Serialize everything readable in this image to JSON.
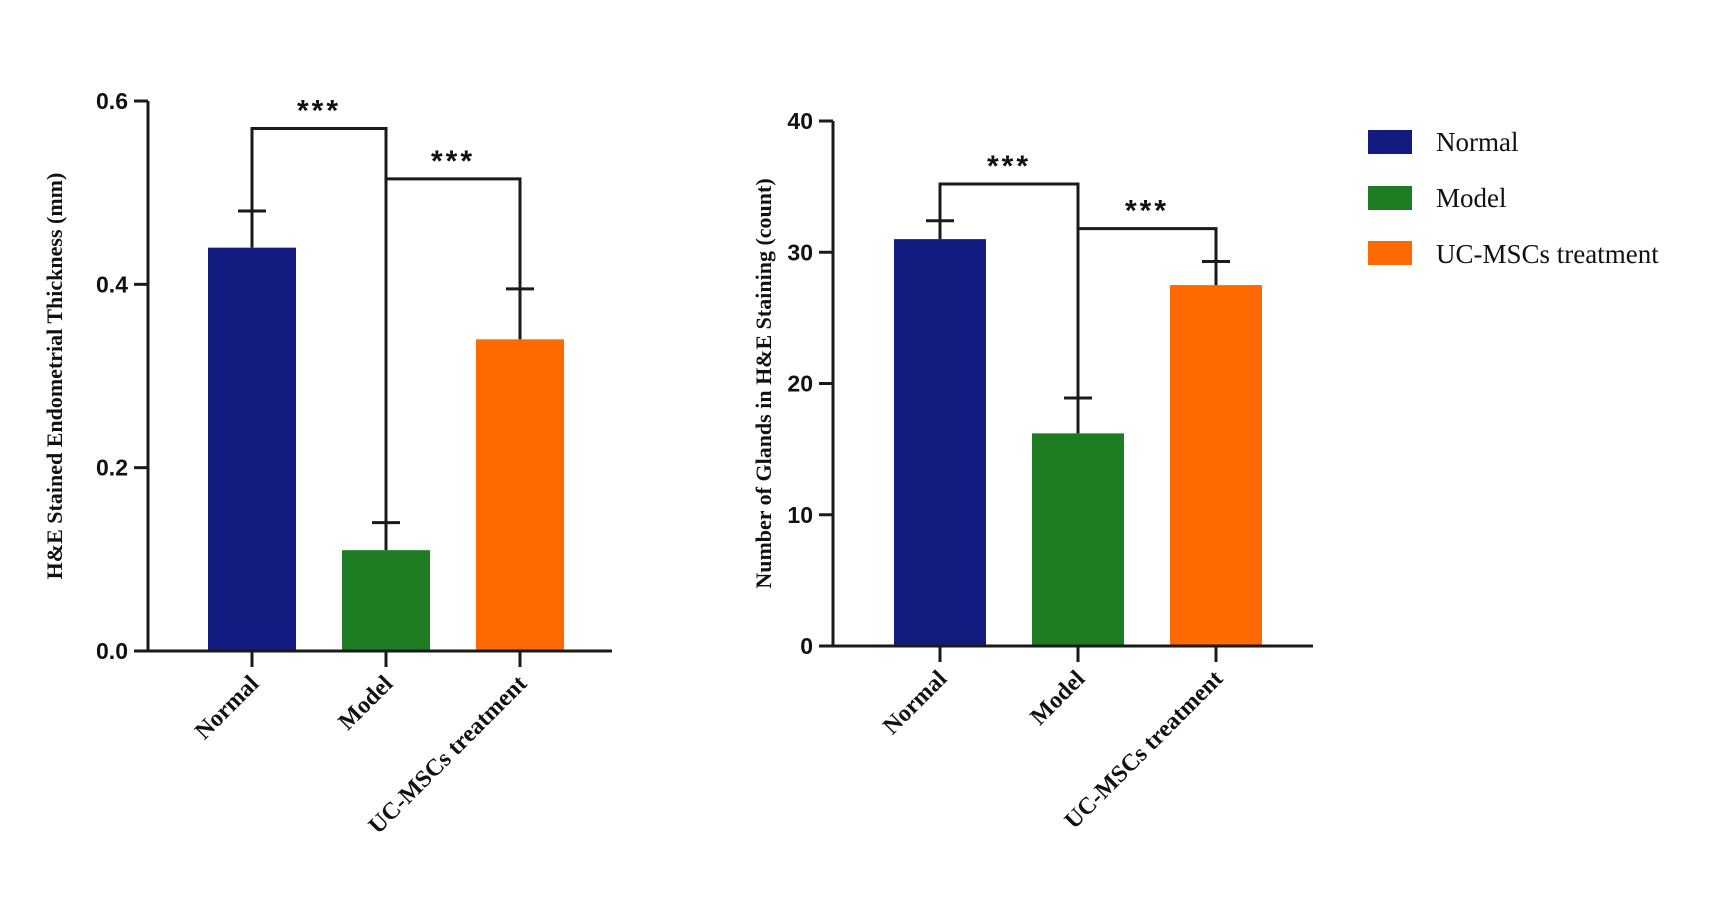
{
  "chart_data": [
    {
      "type": "bar",
      "ylabel": "H&E Stained Endometrial Thickness (mm)",
      "categories": [
        "Normal",
        "Model",
        "UC-MSCs treatment"
      ],
      "values": [
        0.44,
        0.11,
        0.34
      ],
      "errors": [
        0.04,
        0.03,
        0.055
      ],
      "ylim": [
        0,
        0.6
      ],
      "yticks": [
        0.0,
        0.2,
        0.4,
        0.6
      ],
      "ytick_labels": [
        "0.0",
        "0.2",
        "0.4",
        "0.6"
      ],
      "colors": [
        "#141b80",
        "#1e7d22",
        "#ff6a00"
      ],
      "significance": [
        {
          "from": 0,
          "to": 1,
          "level": 0.57,
          "label": "***"
        },
        {
          "from": 1,
          "to": 2,
          "level": 0.515,
          "label": "***"
        }
      ]
    },
    {
      "type": "bar",
      "ylabel": "Number of Glands in H&E Staining (count)",
      "categories": [
        "Normal",
        "Model",
        "UC-MSCs treatment"
      ],
      "values": [
        31,
        16.2,
        27.5
      ],
      "errors": [
        1.4,
        2.7,
        1.8
      ],
      "ylim": [
        0,
        40
      ],
      "yticks": [
        0,
        10,
        20,
        30,
        40
      ],
      "ytick_labels": [
        "0",
        "10",
        "20",
        "30",
        "40"
      ],
      "colors": [
        "#141b80",
        "#1e7d22",
        "#ff6a00"
      ],
      "significance": [
        {
          "from": 0,
          "to": 1,
          "level": 35.2,
          "label": "***"
        },
        {
          "from": 1,
          "to": 2,
          "level": 31.8,
          "label": "***"
        }
      ]
    }
  ],
  "legend": {
    "position": "top-right",
    "entries": [
      {
        "label": "Normal",
        "color": "#141b80"
      },
      {
        "label": "Model",
        "color": "#1e7d22"
      },
      {
        "label": "UC-MSCs treatment",
        "color": "#ff6a00"
      }
    ]
  }
}
